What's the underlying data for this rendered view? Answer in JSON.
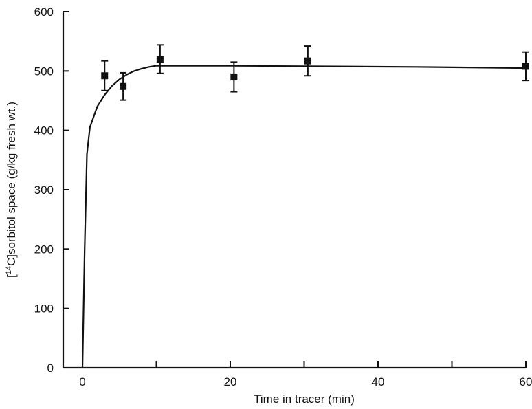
{
  "chart_data": {
    "type": "scatter",
    "title": "",
    "xlabel": "Time in tracer (min)",
    "ylabel_parts": [
      "[",
      "14",
      "C]sorbitol space (g/kg fresh wt.)"
    ],
    "xlim": [
      0,
      60
    ],
    "ylim": [
      0,
      600
    ],
    "x_major_ticks": [
      0,
      20,
      40,
      60
    ],
    "x_minor_ticks": [
      10,
      30,
      50
    ],
    "y_ticks": [
      0,
      100,
      200,
      300,
      400,
      500,
      600
    ],
    "grid": false,
    "series": [
      {
        "marker": "filled-square",
        "points": [
          {
            "x": 3,
            "y": 492,
            "err": 25
          },
          {
            "x": 5.5,
            "y": 474,
            "err": 23
          },
          {
            "x": 10.5,
            "y": 520,
            "err": 24
          },
          {
            "x": 20.5,
            "y": 490,
            "err": 25
          },
          {
            "x": 30.5,
            "y": 517,
            "err": 25
          },
          {
            "x": 60,
            "y": 508,
            "err": 24
          }
        ]
      }
    ],
    "fitted_curve": {
      "points": [
        [
          0,
          0
        ],
        [
          0.3,
          200
        ],
        [
          0.6,
          360
        ],
        [
          1,
          405
        ],
        [
          2,
          440
        ],
        [
          3,
          460
        ],
        [
          4,
          475
        ],
        [
          5,
          486
        ],
        [
          6,
          494
        ],
        [
          7,
          500
        ],
        [
          8,
          504
        ],
        [
          9,
          507
        ],
        [
          10,
          509
        ],
        [
          20,
          509
        ],
        [
          30,
          508
        ],
        [
          45,
          507
        ],
        [
          60,
          505
        ]
      ]
    },
    "colors": {
      "ink": "#111111",
      "background": "#ffffff"
    }
  }
}
